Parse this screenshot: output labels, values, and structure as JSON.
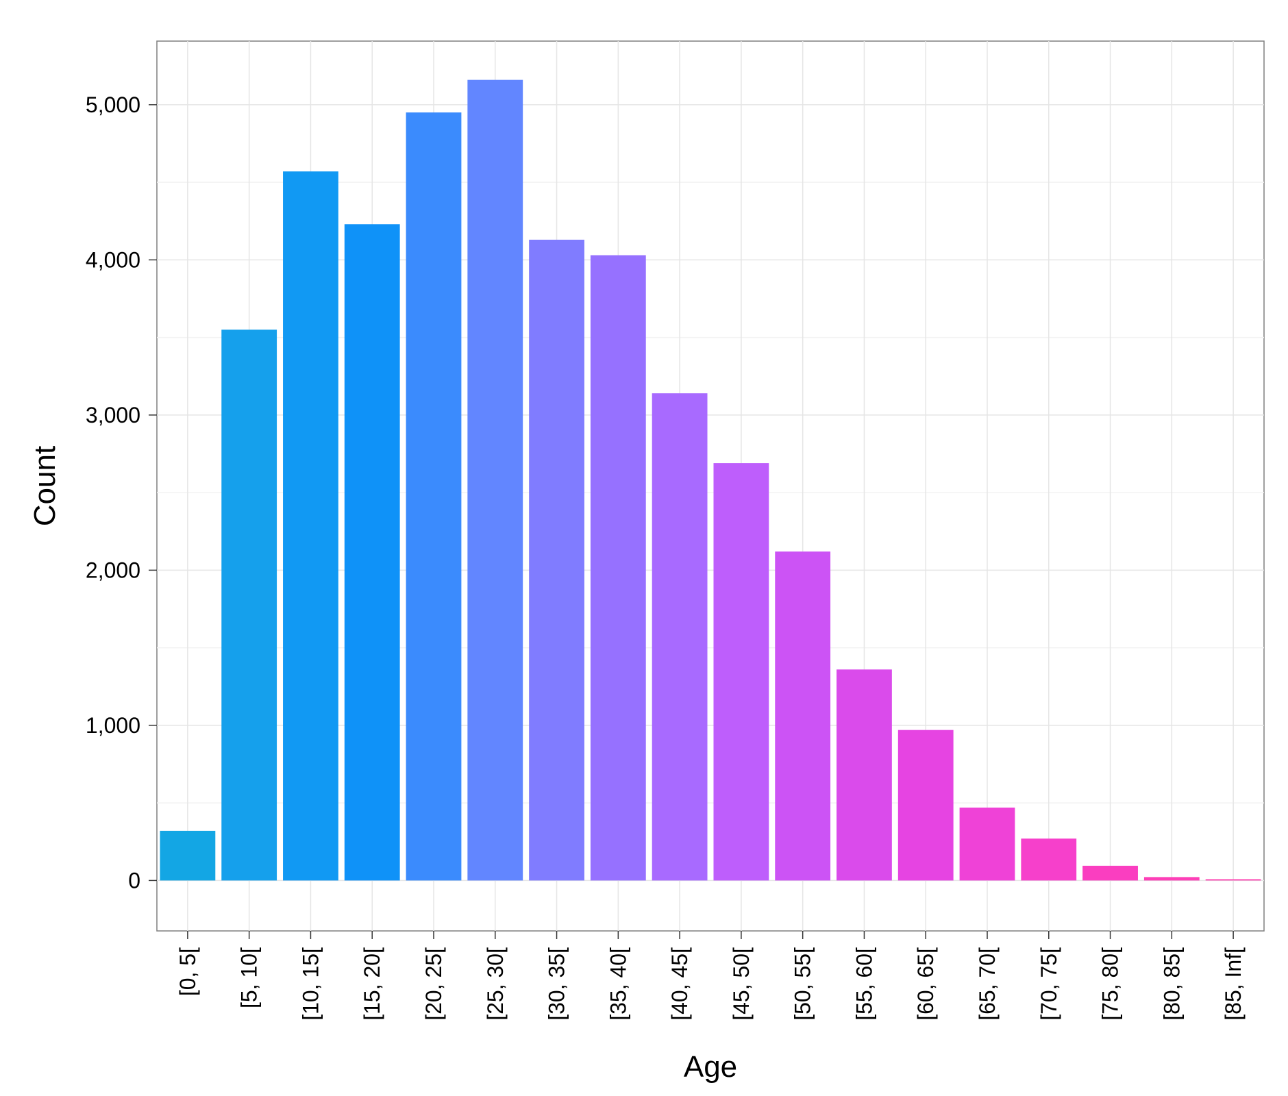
{
  "chart_data": {
    "type": "bar",
    "title": "",
    "xlabel": "Age",
    "ylabel": "Count",
    "ylim": [
      -325,
      5410
    ],
    "grid": true,
    "categories": [
      "[0, 5[",
      "[5, 10[",
      "[10, 15[",
      "[15, 20[",
      "[20, 25[",
      "[25, 30[",
      "[30, 35[",
      "[35, 40[",
      "[40, 45[",
      "[45, 50[",
      "[50, 55[",
      "[55, 60[",
      "[60, 65[",
      "[65, 70[",
      "[70, 75[",
      "[75, 80[",
      "[80, 85[",
      "[85, Inf["
    ],
    "values": [
      320,
      3550,
      4570,
      4230,
      4950,
      5160,
      4130,
      4030,
      3140,
      2690,
      2120,
      1360,
      970,
      470,
      270,
      95,
      22,
      8
    ],
    "yticks": [
      0,
      1000,
      2000,
      3000,
      4000,
      5000
    ],
    "ytick_labels": [
      "0",
      "1,000",
      "2,000",
      "3,000",
      "4,000",
      "5,000"
    ],
    "colors": [
      "#13A6E4",
      "#15A0EC",
      "#1199F3",
      "#0F92F8",
      "#3B8BFD",
      "#6286FF",
      "#807CFF",
      "#9671FF",
      "#A86AFF",
      "#BE5EFC",
      "#CC53F5",
      "#DA4BEB",
      "#E644E2",
      "#EF42D7",
      "#F640CB",
      "#FA3EC0",
      "#FD3FB7",
      "#FE3EB0"
    ]
  }
}
